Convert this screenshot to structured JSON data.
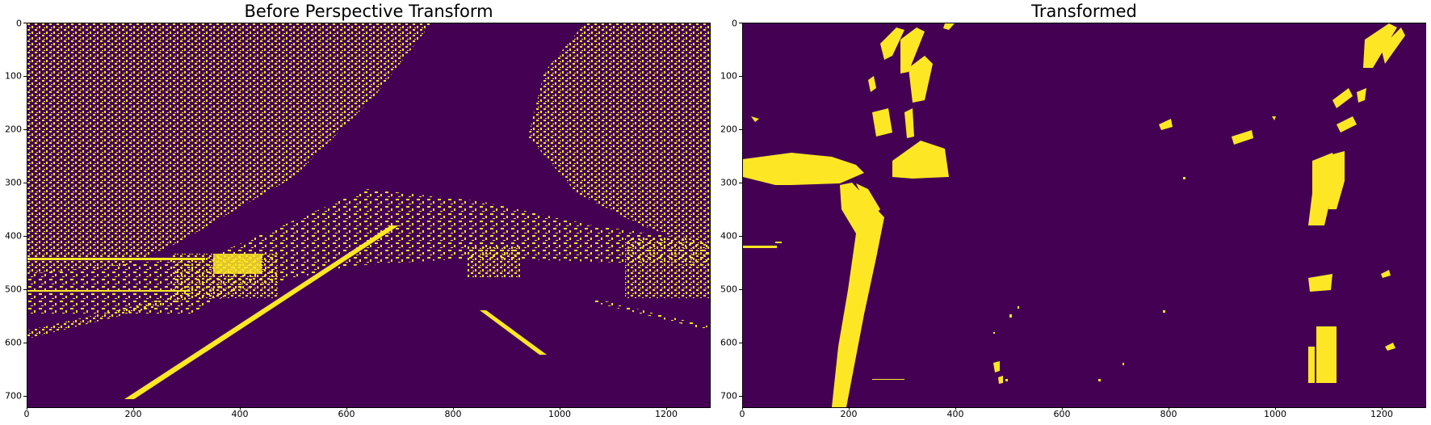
{
  "panels": [
    {
      "title": "Before Perspective Transform",
      "x_ticks": [
        "0",
        "200",
        "400",
        "600",
        "800",
        "1000",
        "1200"
      ],
      "y_ticks": [
        "0",
        "100",
        "200",
        "300",
        "400",
        "500",
        "600",
        "700"
      ]
    },
    {
      "title": "Transformed",
      "x_ticks": [
        "0",
        "200",
        "400",
        "600",
        "800",
        "1000",
        "1200"
      ],
      "y_ticks": [
        "0",
        "100",
        "200",
        "300",
        "400",
        "500",
        "600",
        "700"
      ]
    }
  ],
  "image_extent": {
    "width": 1280,
    "height": 720
  },
  "colors": {
    "background": "#440154",
    "foreground": "#fde725"
  }
}
